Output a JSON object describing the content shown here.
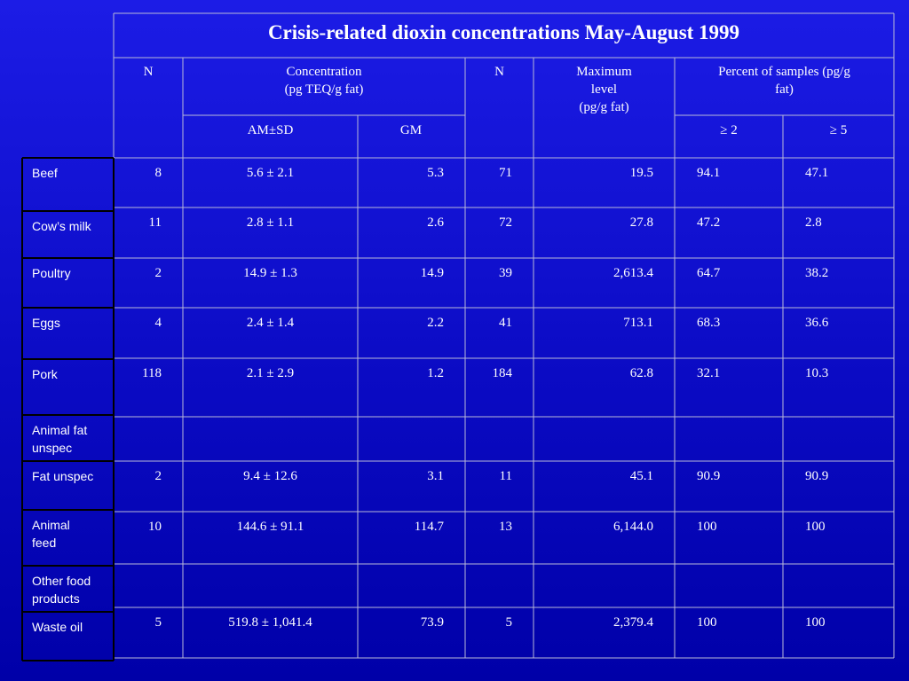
{
  "title": "Crisis-related dioxin concentrations May-August 1999",
  "headers": {
    "n": "N",
    "concentration": "Concentration\n(pg TEQ/g fat)",
    "n2": "N",
    "maximum": "Maximum\nlevel\n(pg/g fat)",
    "percent": "Percent of samples (pg/g\nfat)",
    "am_sd": "AM±SD",
    "gm": "GM",
    "ge2": "≥ 2",
    "ge5": "≥ 5"
  },
  "rows": [
    {
      "label": "Beef",
      "cells": [
        "8",
        "5.6 ± 2.1",
        "5.3",
        "71",
        "19.5",
        "94.1",
        "47.1"
      ]
    },
    {
      "label": "Cow’s milk",
      "cells": [
        "11",
        "2.8 ± 1.1",
        "2.6",
        "72",
        "27.8",
        "47.2",
        "2.8"
      ]
    },
    {
      "label": "Poultry",
      "cells": [
        "2",
        "14.9 ± 1.3",
        "14.9",
        "39",
        "2,613.4",
        "64.7",
        "38.2"
      ]
    },
    {
      "label": "Eggs",
      "cells": [
        "4",
        "2.4 ± 1.4",
        "2.2",
        "41",
        "713.1",
        "68.3",
        "36.6"
      ]
    },
    {
      "label": "Pork",
      "cells": [
        "118",
        "2.1 ± 2.9",
        "1.2",
        "184",
        "62.8",
        "32.1",
        "10.3"
      ]
    },
    {
      "label": "Animal fat\nunspec"
    },
    {
      "label": "Fat unspec",
      "cells": [
        "2",
        "9.4 ± 12.6",
        "3.1",
        "11",
        "45.1",
        "90.9",
        "90.9"
      ]
    },
    {
      "label": "Animal\nfeed",
      "cells": [
        "10",
        "144.6 ± 91.1",
        "114.7",
        "13",
        "6,144.0",
        "100",
        "100"
      ]
    },
    {
      "label": "Other food\nproducts"
    },
    {
      "label": "Waste oil",
      "cells": [
        "5",
        "519.8 ± 1,041.4",
        "73.9",
        "5",
        "2,379.4",
        "100",
        "100"
      ]
    }
  ]
}
